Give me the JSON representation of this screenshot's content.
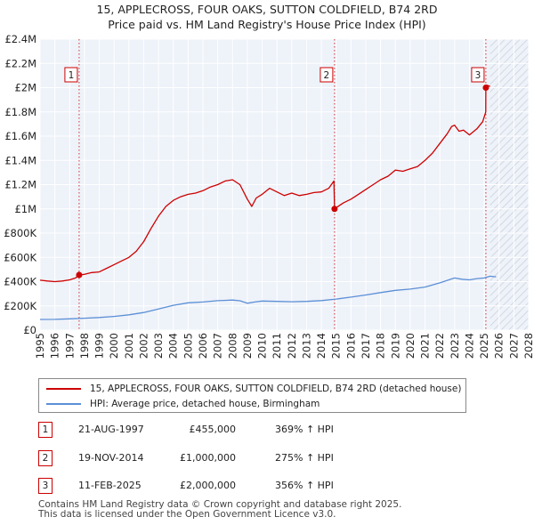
{
  "chart_data": {
    "type": "line",
    "title": "15, APPLECROSS, FOUR OAKS, SUTTON COLDFIELD, B74 2RD",
    "subtitle": "Price paid vs. HM Land Registry's House Price Index (HPI)",
    "xlabel": "",
    "ylabel": "",
    "xlim": [
      1995,
      2028
    ],
    "ylim": [
      0,
      2400000
    ],
    "x_ticks": [
      "1995",
      "1996",
      "1997",
      "1998",
      "1999",
      "2000",
      "2001",
      "2002",
      "2003",
      "2004",
      "2005",
      "2006",
      "2007",
      "2008",
      "2009",
      "2010",
      "2011",
      "2012",
      "2013",
      "2014",
      "2015",
      "2016",
      "2017",
      "2018",
      "2019",
      "2020",
      "2021",
      "2022",
      "2023",
      "2024",
      "2025",
      "2026",
      "2027",
      "2028"
    ],
    "y_ticks": [
      {
        "value": 0,
        "label": "£0"
      },
      {
        "value": 200000,
        "label": "£200K"
      },
      {
        "value": 400000,
        "label": "£400K"
      },
      {
        "value": 600000,
        "label": "£600K"
      },
      {
        "value": 800000,
        "label": "£800K"
      },
      {
        "value": 1000000,
        "label": "£1M"
      },
      {
        "value": 1200000,
        "label": "£1.2M"
      },
      {
        "value": 1400000,
        "label": "£1.4M"
      },
      {
        "value": 1600000,
        "label": "£1.6M"
      },
      {
        "value": 1800000,
        "label": "£1.8M"
      },
      {
        "value": 2000000,
        "label": "£2M"
      },
      {
        "value": 2200000,
        "label": "£2.2M"
      },
      {
        "value": 2400000,
        "label": "£2.4M"
      }
    ],
    "grid": true,
    "forecast_start": 2025.4,
    "series": [
      {
        "name": "15, APPLECROSS, FOUR OAKS, SUTTON COLDFIELD, B74 2RD (detached house)",
        "color": "#cc0000",
        "x": [
          1995.0,
          1995.5,
          1996.0,
          1996.5,
          1997.0,
          1997.4,
          1997.64,
          1998.0,
          1998.5,
          1999.0,
          1999.5,
          2000.0,
          2000.5,
          2001.0,
          2001.5,
          2002.0,
          2002.5,
          2003.0,
          2003.5,
          2004.0,
          2004.5,
          2005.0,
          2005.5,
          2006.0,
          2006.5,
          2007.0,
          2007.5,
          2008.0,
          2008.5,
          2009.0,
          2009.3,
          2009.6,
          2010.0,
          2010.5,
          2011.0,
          2011.5,
          2012.0,
          2012.5,
          2013.0,
          2013.5,
          2014.0,
          2014.5,
          2014.85,
          2014.89,
          2015.0,
          2015.5,
          2016.0,
          2016.5,
          2017.0,
          2017.5,
          2018.0,
          2018.5,
          2019.0,
          2019.5,
          2020.0,
          2020.5,
          2021.0,
          2021.5,
          2022.0,
          2022.5,
          2022.8,
          2023.0,
          2023.3,
          2023.6,
          2024.0,
          2024.5,
          2024.9,
          2025.1,
          2025.11,
          2025.2,
          2025.4
        ],
        "values": [
          412000,
          405000,
          400000,
          405000,
          415000,
          430000,
          455000,
          460000,
          475000,
          480000,
          510000,
          540000,
          570000,
          600000,
          650000,
          730000,
          840000,
          940000,
          1020000,
          1070000,
          1100000,
          1120000,
          1130000,
          1150000,
          1180000,
          1200000,
          1230000,
          1240000,
          1200000,
          1080000,
          1020000,
          1090000,
          1120000,
          1170000,
          1140000,
          1110000,
          1130000,
          1110000,
          1120000,
          1135000,
          1140000,
          1170000,
          1230000,
          1000000,
          1010000,
          1050000,
          1080000,
          1120000,
          1160000,
          1200000,
          1240000,
          1270000,
          1320000,
          1310000,
          1330000,
          1350000,
          1400000,
          1460000,
          1540000,
          1620000,
          1680000,
          1690000,
          1640000,
          1650000,
          1610000,
          1660000,
          1720000,
          1800000,
          2000000,
          2020000,
          2010000
        ]
      },
      {
        "name": "HPI: Average price, detached house, Birmingham",
        "color": "#5b8fd6",
        "x": [
          1995.0,
          1996.0,
          1997.0,
          1998.0,
          1999.0,
          2000.0,
          2001.0,
          2002.0,
          2003.0,
          2004.0,
          2005.0,
          2006.0,
          2007.0,
          2008.0,
          2008.5,
          2009.0,
          2009.5,
          2010.0,
          2011.0,
          2012.0,
          2013.0,
          2014.0,
          2015.0,
          2016.0,
          2017.0,
          2018.0,
          2019.0,
          2020.0,
          2021.0,
          2022.0,
          2022.5,
          2023.0,
          2023.5,
          2024.0,
          2024.5,
          2025.0,
          2025.4,
          2025.8
        ],
        "values": [
          88000,
          89000,
          93000,
          98000,
          104000,
          113000,
          126000,
          145000,
          175000,
          205000,
          225000,
          232000,
          243000,
          248000,
          242000,
          222000,
          232000,
          240000,
          237000,
          234000,
          237000,
          244000,
          256000,
          272000,
          290000,
          310000,
          328000,
          338000,
          355000,
          390000,
          410000,
          430000,
          420000,
          415000,
          425000,
          430000,
          445000,
          440000
        ]
      }
    ],
    "markers": [
      {
        "label": "1",
        "x": 1997.64,
        "value": 455000
      },
      {
        "label": "2",
        "x": 2014.89,
        "value": 1000000
      },
      {
        "label": "3",
        "x": 2025.11,
        "value": 2000000
      }
    ]
  },
  "legend": {
    "property_label": "15, APPLECROSS, FOUR OAKS, SUTTON COLDFIELD, B74 2RD (detached house)",
    "hpi_label": "HPI: Average price, detached house, Birmingham"
  },
  "sales": [
    {
      "num": "1",
      "date": "21-AUG-1997",
      "price": "£455,000",
      "hpi": "369% ↑ HPI"
    },
    {
      "num": "2",
      "date": "19-NOV-2014",
      "price": "£1,000,000",
      "hpi": "275% ↑ HPI"
    },
    {
      "num": "3",
      "date": "11-FEB-2025",
      "price": "£2,000,000",
      "hpi": "356% ↑ HPI"
    }
  ],
  "footer": {
    "line1": "Contains HM Land Registry data © Crown copyright and database right 2025.",
    "line2": "This data is licensed under the Open Government Licence v3.0."
  },
  "colors": {
    "property": "#cc0000",
    "hpi": "#5b8fd6",
    "plot_bg": "#eef2f9",
    "grid": "#ffffff",
    "badge_border": "#cc0000"
  }
}
